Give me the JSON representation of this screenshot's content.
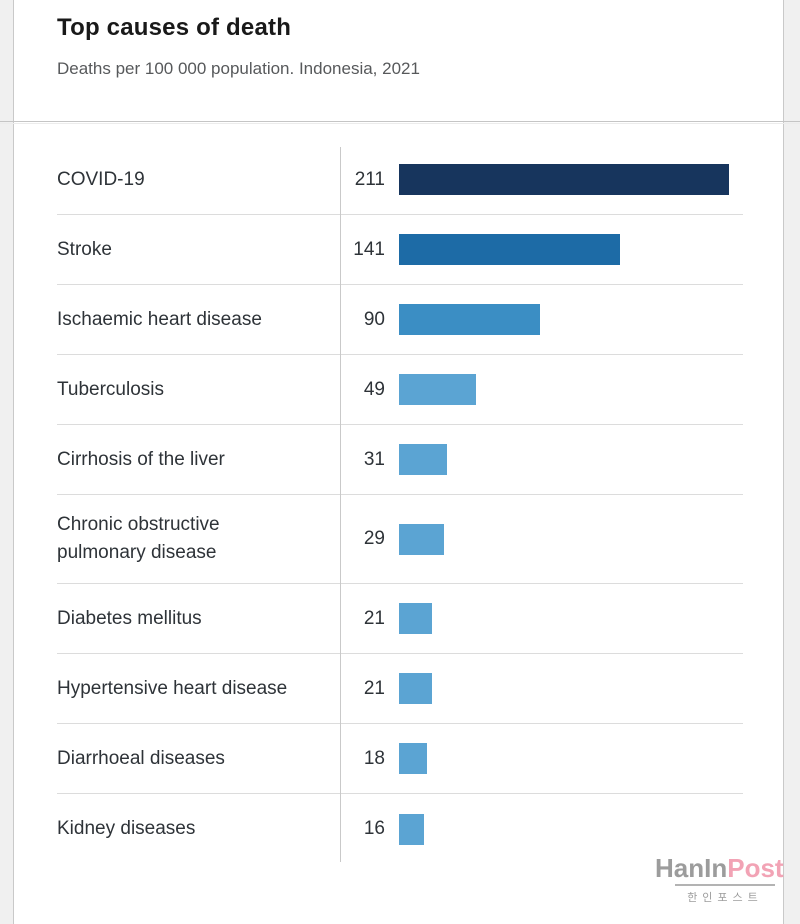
{
  "header": {
    "title": "Top causes of death",
    "subtitle": "Deaths per 100 000 population. Indonesia, 2021"
  },
  "chart_data": {
    "type": "bar",
    "orientation": "horizontal",
    "title": "Top causes of death",
    "subtitle": "Deaths per 100 000 population. Indonesia, 2021",
    "categories": [
      "COVID-19",
      "Stroke",
      "Ischaemic heart disease",
      "Tuberculosis",
      "Cirrhosis of the liver",
      "Chronic obstructive pulmonary disease",
      "Diabetes mellitus",
      "Hypertensive heart disease",
      "Diarrhoeal diseases",
      "Kidney diseases"
    ],
    "values": [
      211,
      141,
      90,
      49,
      31,
      29,
      21,
      21,
      18,
      16
    ],
    "value_labels_shown": true,
    "xlim": [
      0,
      215
    ],
    "grid": false,
    "legend": false,
    "bar_colors": [
      "#17355d",
      "#1d6ba6",
      "#3b8ec4",
      "#5ba4d3",
      "#5ba4d3",
      "#5ba4d3",
      "#5ba4d3",
      "#5ba4d3",
      "#5ba4d3",
      "#5ba4d3"
    ]
  },
  "watermark": {
    "latin_gray": "HanIn",
    "latin_pink": "Post",
    "korean": "한인포스트",
    "gray_color": "#9c9c9c",
    "pink_color": "#f2a3b5"
  }
}
